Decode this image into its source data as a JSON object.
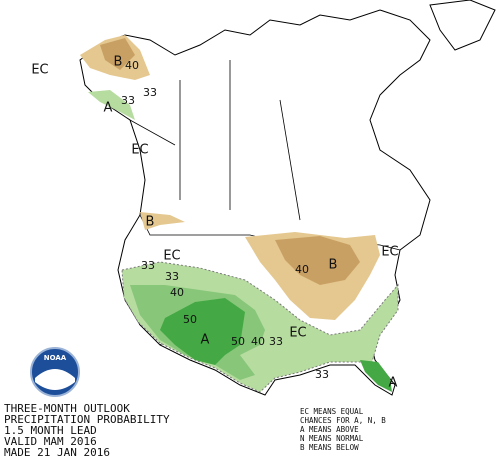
{
  "title_lines": [
    "THREE-MONTH OUTLOOK",
    "PRECIPITATION PROBABILITY",
    "1.5 MONTH LEAD",
    "VALID MAM 2016",
    "MADE 21 JAN 2016"
  ],
  "legend_lines": [
    "EC MEANS EQUAL",
    "CHANCES FOR A, N, B",
    "A MEANS ABOVE",
    "N MEANS NORMAL",
    "B MEANS BELOW"
  ],
  "logo": "NOAA",
  "map_labels": [
    "EC",
    "B",
    "40",
    "A",
    "33",
    "33",
    "EC",
    "B",
    "EC",
    "33",
    "33",
    "40",
    "50",
    "A",
    "50",
    "40",
    "33",
    "EC",
    "40",
    "B",
    "EC",
    "33",
    "A"
  ]
}
